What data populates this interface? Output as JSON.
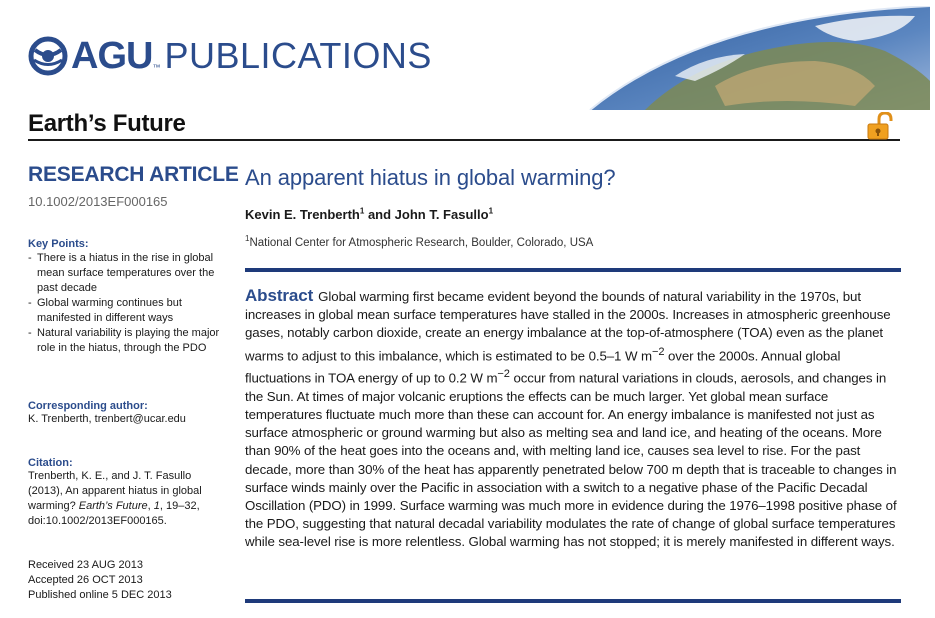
{
  "header": {
    "publisher_brand": "AGU",
    "publisher_suffix": "PUBLICATIONS",
    "journal": "Earth’s Future",
    "icons": [
      "agu-globe-icon",
      "earth-from-space-image",
      "open-access-lock-icon"
    ]
  },
  "colors": {
    "accent": "#2b4c8c",
    "rule": "#1e3a7a",
    "open_access": "#f0a020"
  },
  "sidebar": {
    "section": "RESEARCH ARTICLE",
    "doi": "10.1002/2013EF000165",
    "key_points_heading": "Key Points:",
    "key_points": [
      "There is a hiatus in the rise in global mean surface temperatures over the past decade",
      "Global warming continues but manifested in different ways",
      "Natural variability is playing the major role in the hiatus, through the PDO"
    ],
    "corresponding_heading": "Corresponding author:",
    "corresponding_text": "K. Trenberth, trenbert@ucar.edu",
    "citation_heading": "Citation:",
    "citation_line1": "Trenberth, K. E., and J. T. Fasullo (2013), An apparent hiatus in global warming? ",
    "citation_journal": "Earth’s Future",
    "citation_line2": ", ",
    "citation_volume": "1",
    "citation_line3": ", 19–32, doi:10.1002/2013EF000165.",
    "received": "Received 23 AUG 2013",
    "accepted": "Accepted 26 OCT 2013",
    "published": "Published online 5 DEC 2013"
  },
  "article": {
    "title": "An apparent hiatus in global warming?",
    "author1": "Kevin E. Trenberth",
    "author1_sup": "1",
    "author_sep": " and ",
    "author2": "John T. Fasullo",
    "author2_sup": "1",
    "affiliation_sup": "1",
    "affiliation": "National Center for Atmospheric Research, Boulder, Colorado, USA",
    "abstract_heading": "Abstract",
    "abstract_part1": "Global warming first became evident beyond the bounds of natural variability in the 1970s, but increases in global mean surface temperatures have stalled in the 2000s. Increases in atmospheric greenhouse gases, notably carbon dioxide, create an energy imbalance at the top-of-atmosphere (TOA) even as the planet warms to adjust to this imbalance, which is estimated to be 0.5–1 W m",
    "abstract_sup1": "−2",
    "abstract_part2": " over the 2000s. Annual global fluctuations in TOA energy of up to 0.2 W m",
    "abstract_sup2": "−2",
    "abstract_part3": " occur from natural variations in clouds, aerosols, and changes in the Sun. At times of major volcanic eruptions the effects can be much larger. Yet global mean surface temperatures fluctuate much more than these can account for. An energy imbalance is manifested not just as surface atmospheric or ground warming but also as melting sea and land ice, and heating of the oceans. More than 90% of the heat goes into the oceans and, with melting land ice, causes sea level to rise. For the past decade, more than 30% of the heat has apparently penetrated below 700 m depth that is traceable to changes in surface winds mainly over the Pacific in association with a switch to a negative phase of the Pacific Decadal Oscillation (PDO) in 1999. Surface warming was much more in evidence during the 1976–1998 positive phase of the PDO, suggesting that natural decadal variability modulates the rate of change of global surface temperatures while sea-level rise is more relentless. Global warming has not stopped; it is merely manifested in different ways."
  }
}
